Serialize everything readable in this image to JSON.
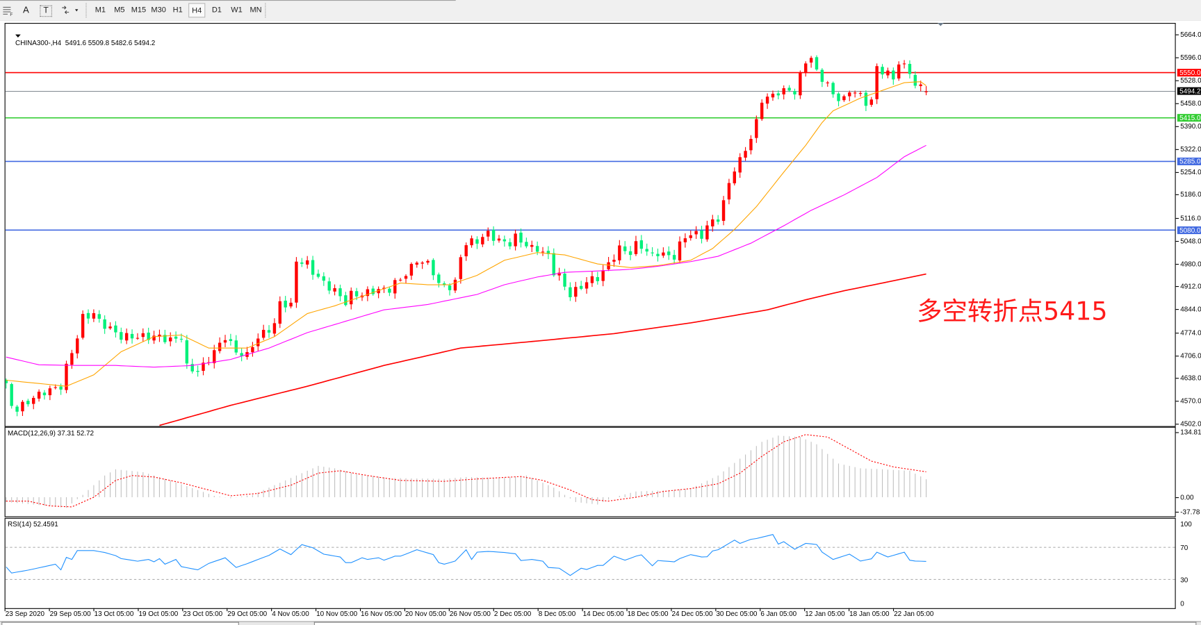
{
  "toolbar": {
    "tools": [
      {
        "icon": "grid-icon"
      },
      {
        "icon": "text-A-icon",
        "label": "A"
      },
      {
        "icon": "text-label-icon",
        "label": "T"
      },
      {
        "icon": "arrows-icon"
      }
    ],
    "timeframes": [
      "M1",
      "M5",
      "M15",
      "M30",
      "H1",
      "H4",
      "D1",
      "W1",
      "MN"
    ],
    "active_timeframe": "H4"
  },
  "chart": {
    "header": "CHINA300-,H4  5491.6 5509.8 5482.6 5494.2",
    "symbol": "CHINA300-",
    "period": "H4",
    "ohlc_last": {
      "open": 5491.6,
      "high": 5509.8,
      "low": 5482.6,
      "close": 5494.2
    },
    "bull_color": "#ff0000",
    "bear_color": "#00f07a",
    "price_axis": [
      "5664.0",
      "5596.0",
      "5528.0",
      "5458.0",
      "5390.0",
      "5322.0",
      "5254.0",
      "5186.0",
      "5116.0",
      "5048.0",
      "4980.0",
      "4912.0",
      "4844.0",
      "4774.0",
      "4706.0",
      "4638.0",
      "4570.0",
      "4502.0"
    ],
    "price_range": [
      4502,
      5664
    ],
    "levels": [
      {
        "value": 5550.0,
        "label": "5550.0",
        "color": "#ff0000"
      },
      {
        "value": 5494.2,
        "label": "5494.2",
        "color": "#808890",
        "label_bg": "#000000"
      },
      {
        "value": 5415.0,
        "label": "5415.0",
        "color": "#32cd32"
      },
      {
        "value": 5285.0,
        "label": "5285.0",
        "color": "#4169e1"
      },
      {
        "value": 5080.0,
        "label": "5080.0",
        "color": "#4169e1"
      }
    ],
    "annotation": "多空转折点5415",
    "close_path": [
      [
        0,
        4614
      ],
      [
        1,
        4557
      ],
      [
        2,
        4545
      ],
      [
        4,
        4568
      ],
      [
        5,
        4580
      ],
      [
        7,
        4598
      ],
      [
        8,
        4602
      ],
      [
        10,
        4614
      ],
      [
        11,
        4671
      ],
      [
        13,
        4762
      ],
      [
        14,
        4819
      ],
      [
        16,
        4831
      ],
      [
        17,
        4808
      ],
      [
        19,
        4785
      ],
      [
        21,
        4762
      ],
      [
        23,
        4762
      ],
      [
        25,
        4762
      ],
      [
        28,
        4762
      ],
      [
        30,
        4751
      ],
      [
        32,
        4762
      ],
      [
        33,
        4671
      ],
      [
        35,
        4659
      ],
      [
        36,
        4675
      ],
      [
        38,
        4717
      ],
      [
        40,
        4762
      ],
      [
        42,
        4717
      ],
      [
        44,
        4705
      ],
      [
        45,
        4739
      ],
      [
        47,
        4774
      ],
      [
        49,
        4796
      ],
      [
        50,
        4865
      ],
      [
        52,
        4853
      ],
      [
        53,
        4990
      ],
      [
        55,
        4979
      ],
      [
        56,
        4956
      ],
      [
        58,
        4922
      ],
      [
        60,
        4899
      ],
      [
        62,
        4865
      ],
      [
        63,
        4888
      ],
      [
        65,
        4888
      ],
      [
        67,
        4899
      ],
      [
        70,
        4904
      ],
      [
        71,
        4922
      ],
      [
        72,
        4933
      ],
      [
        74,
        4968
      ],
      [
        75,
        4990
      ],
      [
        77,
        4979
      ],
      [
        78,
        4956
      ],
      [
        79,
        4917
      ],
      [
        81,
        4911
      ],
      [
        82,
        4922
      ],
      [
        83,
        5002
      ],
      [
        84,
        5041
      ],
      [
        86,
        5048
      ],
      [
        88,
        5070
      ],
      [
        89,
        5059
      ],
      [
        90,
        5048
      ],
      [
        92,
        5041
      ],
      [
        93,
        5059
      ],
      [
        95,
        5036
      ],
      [
        96,
        5025
      ],
      [
        97,
        5025
      ],
      [
        99,
        5002
      ],
      [
        100,
        4956
      ],
      [
        101,
        4945
      ],
      [
        102,
        4911
      ],
      [
        103,
        4888
      ],
      [
        105,
        4911
      ],
      [
        106,
        4927
      ],
      [
        108,
        4938
      ],
      [
        109,
        4956
      ],
      [
        111,
        5002
      ],
      [
        112,
        5025
      ],
      [
        114,
        5013
      ],
      [
        115,
        5036
      ],
      [
        116,
        5032
      ],
      [
        118,
        5002
      ],
      [
        119,
        5013
      ],
      [
        121,
        5002
      ],
      [
        122,
        5002
      ],
      [
        123,
        5036
      ],
      [
        124,
        5059
      ],
      [
        125,
        5070
      ],
      [
        127,
        5063
      ],
      [
        128,
        5093
      ],
      [
        130,
        5116
      ],
      [
        131,
        5162
      ],
      [
        132,
        5219
      ],
      [
        133,
        5264
      ],
      [
        134,
        5287
      ],
      [
        136,
        5356
      ],
      [
        137,
        5401
      ],
      [
        138,
        5470
      ],
      [
        140,
        5481
      ],
      [
        141,
        5493
      ],
      [
        143,
        5497
      ],
      [
        144,
        5493
      ],
      [
        146,
        5584
      ],
      [
        147,
        5596
      ],
      [
        148,
        5550
      ],
      [
        150,
        5516
      ],
      [
        151,
        5481
      ],
      [
        153,
        5470
      ],
      [
        154,
        5493
      ],
      [
        155,
        5497
      ],
      [
        157,
        5459
      ],
      [
        158,
        5470
      ],
      [
        159,
        5561
      ],
      [
        161,
        5550
      ],
      [
        162,
        5527
      ],
      [
        163,
        5584
      ],
      [
        165,
        5550
      ],
      [
        166,
        5516
      ],
      [
        167,
        5504
      ],
      [
        168,
        5494.2
      ]
    ],
    "moving_averages": [
      {
        "color": "#ffa500",
        "points": [
          [
            0,
            4632
          ],
          [
            11,
            4614
          ],
          [
            16,
            4648
          ],
          [
            21,
            4717
          ],
          [
            27,
            4762
          ],
          [
            32,
            4767
          ],
          [
            37,
            4728
          ],
          [
            44,
            4728
          ],
          [
            49,
            4762
          ],
          [
            55,
            4831
          ],
          [
            60,
            4854
          ],
          [
            66,
            4888
          ],
          [
            72,
            4922
          ],
          [
            77,
            4917
          ],
          [
            81,
            4917
          ],
          [
            86,
            4945
          ],
          [
            91,
            4990
          ],
          [
            97,
            5013
          ],
          [
            102,
            5006
          ],
          [
            108,
            4979
          ],
          [
            114,
            4968
          ],
          [
            119,
            4974
          ],
          [
            125,
            4990
          ],
          [
            129,
            5025
          ],
          [
            133,
            5082
          ],
          [
            137,
            5150
          ],
          [
            142,
            5253
          ],
          [
            146,
            5333
          ],
          [
            149,
            5401
          ],
          [
            151,
            5436
          ],
          [
            156,
            5474
          ],
          [
            160,
            5497
          ],
          [
            164,
            5520
          ],
          [
            167,
            5523
          ],
          [
            168,
            5511
          ]
        ]
      },
      {
        "color": "#ff00ff",
        "points": [
          [
            0,
            4701
          ],
          [
            6,
            4678
          ],
          [
            13,
            4676
          ],
          [
            20,
            4676
          ],
          [
            27,
            4671
          ],
          [
            34,
            4676
          ],
          [
            41,
            4694
          ],
          [
            48,
            4728
          ],
          [
            55,
            4774
          ],
          [
            62,
            4808
          ],
          [
            69,
            4842
          ],
          [
            77,
            4858
          ],
          [
            86,
            4888
          ],
          [
            91,
            4917
          ],
          [
            97,
            4940
          ],
          [
            102,
            4954
          ],
          [
            108,
            4958
          ],
          [
            114,
            4963
          ],
          [
            119,
            4972
          ],
          [
            125,
            4986
          ],
          [
            130,
            5002
          ],
          [
            136,
            5041
          ],
          [
            142,
            5093
          ],
          [
            147,
            5139
          ],
          [
            153,
            5185
          ],
          [
            159,
            5237
          ],
          [
            164,
            5299
          ],
          [
            168,
            5333
          ]
        ]
      },
      {
        "color": "#ff0000",
        "points": [
          [
            28,
            4497
          ],
          [
            41,
            4557
          ],
          [
            55,
            4614
          ],
          [
            69,
            4676
          ],
          [
            83,
            4728
          ],
          [
            97,
            4749
          ],
          [
            111,
            4771
          ],
          [
            125,
            4803
          ],
          [
            139,
            4842
          ],
          [
            146,
            4872
          ],
          [
            153,
            4899
          ],
          [
            160,
            4922
          ],
          [
            168,
            4949
          ]
        ]
      }
    ],
    "time_axis": [
      "23 Sep 2020",
      "29 Sep 05:00",
      "13 Oct 05:00",
      "19 Oct 05:00",
      "23 Oct 05:00",
      "29 Oct 05:00",
      "4 Nov 05:00",
      "10 Nov 05:00",
      "16 Nov 05:00",
      "20 Nov 05:00",
      "26 Nov 05:00",
      "2 Dec 05:00",
      "8 Dec 05:00",
      "14 Dec 05:00",
      "18 Dec 05:00",
      "24 Dec 05:00",
      "30 Dec 05:00",
      "6 Jan 05:00",
      "12 Jan 05:00",
      "18 Jan 05:00",
      "22 Jan 05:00"
    ]
  },
  "macd": {
    "title": "MACD(12,26,9) 37.31 52.72",
    "axis": [
      "134.81",
      "0.00",
      "-37.78"
    ],
    "range": [
      -37.78,
      134.81
    ],
    "histogram_color": "#c0c0c0",
    "signal_color": "#ff0000",
    "main": [
      [
        0,
        -10
      ],
      [
        5,
        -15
      ],
      [
        11,
        -22
      ],
      [
        14,
        5
      ],
      [
        18,
        45
      ],
      [
        20,
        58
      ],
      [
        25,
        52
      ],
      [
        30,
        35
      ],
      [
        35,
        15
      ],
      [
        38,
        3
      ],
      [
        41,
        -2
      ],
      [
        45,
        5
      ],
      [
        50,
        30
      ],
      [
        55,
        55
      ],
      [
        57,
        65
      ],
      [
        60,
        60
      ],
      [
        64,
        48
      ],
      [
        70,
        40
      ],
      [
        80,
        38
      ],
      [
        84,
        42
      ],
      [
        90,
        40
      ],
      [
        95,
        45
      ],
      [
        100,
        20
      ],
      [
        104,
        -10
      ],
      [
        108,
        -15
      ],
      [
        111,
        0
      ],
      [
        115,
        12
      ],
      [
        120,
        14
      ],
      [
        125,
        18
      ],
      [
        130,
        45
      ],
      [
        134,
        80
      ],
      [
        138,
        115
      ],
      [
        141,
        128
      ],
      [
        145,
        125
      ],
      [
        148,
        110
      ],
      [
        152,
        70
      ],
      [
        156,
        60
      ],
      [
        160,
        58
      ],
      [
        165,
        55
      ],
      [
        168,
        37.31
      ]
    ],
    "signal": [
      [
        0,
        -8
      ],
      [
        4,
        -8
      ],
      [
        8,
        -18
      ],
      [
        12,
        -20
      ],
      [
        16,
        0
      ],
      [
        20,
        35
      ],
      [
        23,
        45
      ],
      [
        27,
        42
      ],
      [
        32,
        30
      ],
      [
        38,
        12
      ],
      [
        41,
        3
      ],
      [
        46,
        8
      ],
      [
        52,
        25
      ],
      [
        57,
        50
      ],
      [
        61,
        55
      ],
      [
        66,
        45
      ],
      [
        72,
        35
      ],
      [
        80,
        33
      ],
      [
        86,
        38
      ],
      [
        94,
        43
      ],
      [
        98,
        35
      ],
      [
        103,
        15
      ],
      [
        107,
        -5
      ],
      [
        110,
        -8
      ],
      [
        115,
        0
      ],
      [
        120,
        12
      ],
      [
        125,
        18
      ],
      [
        130,
        28
      ],
      [
        134,
        50
      ],
      [
        138,
        85
      ],
      [
        142,
        115
      ],
      [
        146,
        130
      ],
      [
        150,
        125
      ],
      [
        154,
        100
      ],
      [
        158,
        75
      ],
      [
        162,
        63
      ],
      [
        168,
        52.72
      ]
    ]
  },
  "rsi": {
    "title": "RSI(14) 52.4591",
    "axis": [
      "100",
      "70",
      "30",
      "0"
    ],
    "levels": [
      70,
      30
    ],
    "color": "#1e90ff",
    "values": [
      [
        0,
        45.6
      ],
      [
        1,
        38
      ],
      [
        4,
        41.6
      ],
      [
        9,
        49
      ],
      [
        10,
        42
      ],
      [
        11,
        57.5
      ],
      [
        12,
        55
      ],
      [
        13,
        66
      ],
      [
        16,
        66
      ],
      [
        18,
        63.6
      ],
      [
        20,
        59.7
      ],
      [
        21,
        56
      ],
      [
        24,
        52.8
      ],
      [
        26,
        55
      ],
      [
        27,
        52
      ],
      [
        28,
        56
      ],
      [
        29,
        49
      ],
      [
        31,
        55
      ],
      [
        32,
        46
      ],
      [
        35,
        42
      ],
      [
        37,
        50
      ],
      [
        40,
        57
      ],
      [
        42,
        45
      ],
      [
        44,
        49.6
      ],
      [
        46,
        55
      ],
      [
        48,
        60
      ],
      [
        50,
        68
      ],
      [
        52,
        61
      ],
      [
        54,
        73.4
      ],
      [
        56,
        69.5
      ],
      [
        58,
        61.5
      ],
      [
        61,
        58
      ],
      [
        62,
        51
      ],
      [
        63,
        51
      ],
      [
        65,
        57
      ],
      [
        66,
        55
      ],
      [
        68,
        57
      ],
      [
        69,
        54
      ],
      [
        71,
        59
      ],
      [
        72,
        59
      ],
      [
        75,
        67
      ],
      [
        78,
        61
      ],
      [
        79,
        51
      ],
      [
        80,
        49
      ],
      [
        82,
        53
      ],
      [
        84,
        67
      ],
      [
        85,
        55
      ],
      [
        86,
        64
      ],
      [
        88,
        65
      ],
      [
        91,
        63.6
      ],
      [
        93,
        62
      ],
      [
        94,
        53.6
      ],
      [
        96,
        55
      ],
      [
        98,
        52.8
      ],
      [
        99,
        45
      ],
      [
        101,
        44
      ],
      [
        103,
        35
      ],
      [
        105,
        44
      ],
      [
        106,
        42.5
      ],
      [
        108,
        47.5
      ],
      [
        109,
        47.5
      ],
      [
        111,
        59
      ],
      [
        113,
        54
      ],
      [
        115,
        59
      ],
      [
        116,
        60.7
      ],
      [
        118,
        47
      ],
      [
        119,
        53.6
      ],
      [
        122,
        52
      ],
      [
        123,
        56
      ],
      [
        125,
        61
      ],
      [
        127,
        58
      ],
      [
        128,
        58.3
      ],
      [
        129,
        65.5
      ],
      [
        130,
        67
      ],
      [
        133,
        79
      ],
      [
        134,
        75
      ],
      [
        136,
        80
      ],
      [
        137,
        81
      ],
      [
        140,
        86
      ],
      [
        141,
        74
      ],
      [
        142,
        77
      ],
      [
        144,
        67.6
      ],
      [
        146,
        75
      ],
      [
        148,
        73.5
      ],
      [
        149,
        64
      ],
      [
        151,
        55
      ],
      [
        154,
        61.5
      ],
      [
        156,
        53
      ],
      [
        158,
        55.7
      ],
      [
        159,
        64
      ],
      [
        161,
        58
      ],
      [
        164,
        64
      ],
      [
        165,
        54
      ],
      [
        166,
        53
      ],
      [
        168,
        52.46
      ]
    ]
  }
}
